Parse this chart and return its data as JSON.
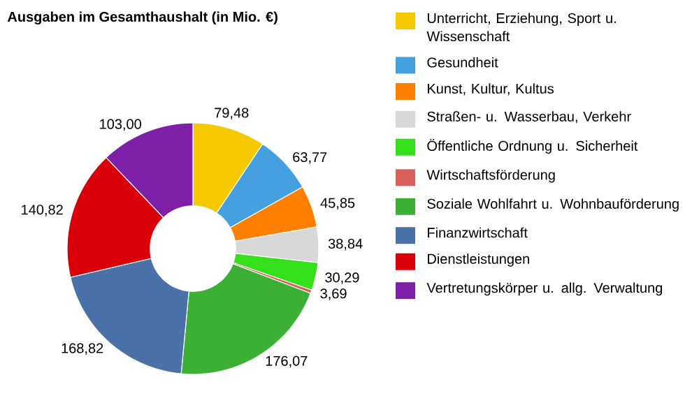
{
  "chart_data": {
    "type": "donut",
    "title": "Ausgaben im Gesamthaushalt (in Mio. €)",
    "categories": [
      "Unterricht, Erziehung, Sport u. Wissenschaft",
      "Gesundheit",
      "Kunst, Kultur, Kultus",
      "Straßen- u. Wasserbau, Verkehr",
      "Öffentliche Ordnung u. Sicherheit",
      "Wirtschaftsförderung",
      "Soziale Wohlfahrt u. Wohnbauförderung",
      "Finanzwirtschaft",
      "Dienstleistungen",
      "Vertretungskörper u. allg. Verwaltung"
    ],
    "values": [
      79.48,
      63.77,
      45.85,
      38.84,
      30.29,
      3.69,
      176.07,
      168.82,
      140.82,
      103.0
    ],
    "value_labels": [
      "79,48",
      "63,77",
      "45,85",
      "38,84",
      "30,29",
      "3,69",
      "176,07",
      "168,82",
      "140,82",
      "103,00"
    ],
    "colors": [
      "#f5c800",
      "#45a0e0",
      "#ff7f00",
      "#d8d8d8",
      "#33e01a",
      "#d9605a",
      "#3cb034",
      "#4a72a8",
      "#d9000a",
      "#7e1fa8"
    ],
    "legend": "right"
  }
}
